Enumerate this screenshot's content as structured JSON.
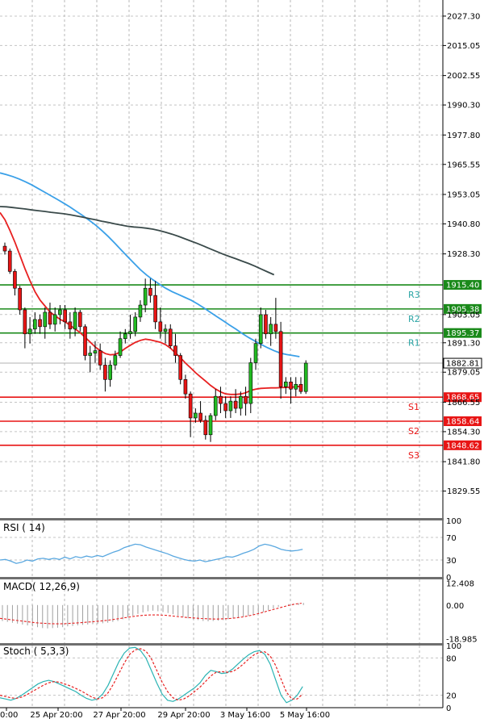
{
  "chart_data": [
    {
      "type": "candlestick",
      "title": "",
      "price_axis": {
        "ylim": [
          1819.0,
          2034.0
        ],
        "tick_labels": [
          "2027.30",
          "2015.05",
          "2002.55",
          "1990.30",
          "1977.80",
          "1965.55",
          "1953.05",
          "1940.80",
          "1928.30",
          "1915.40",
          "1905.38",
          "1903.05",
          "1895.37",
          "1891.30",
          "1882.81",
          "1879.05",
          "1868.65",
          "1866.55",
          "1858.64",
          "1854.30",
          "1848.62",
          "1841.80",
          "1829.55"
        ]
      },
      "x_axis": {
        "tick_labels": [
          "00:00",
          "25 Apr 20:00",
          "27 Apr 20:00",
          "29 Apr 20:00",
          "3 May 16:00",
          "5 May 16:00"
        ]
      },
      "grid": true,
      "candles": [
        {
          "o": 1931.5,
          "h": 1933.0,
          "l": 1928.0,
          "c": 1929.5
        },
        {
          "o": 1929.5,
          "h": 1930.5,
          "l": 1920.0,
          "c": 1921.0
        },
        {
          "o": 1921.0,
          "h": 1922.0,
          "l": 1911.0,
          "c": 1914.0
        },
        {
          "o": 1914.0,
          "h": 1915.0,
          "l": 1903.0,
          "c": 1905.0
        },
        {
          "o": 1905.0,
          "h": 1906.0,
          "l": 1889.0,
          "c": 1895.0
        },
        {
          "o": 1895.0,
          "h": 1902.0,
          "l": 1891.0,
          "c": 1897.0
        },
        {
          "o": 1897.0,
          "h": 1904.0,
          "l": 1895.0,
          "c": 1901.0
        },
        {
          "o": 1901.0,
          "h": 1903.0,
          "l": 1895.0,
          "c": 1898.0
        },
        {
          "o": 1898.0,
          "h": 1906.0,
          "l": 1893.0,
          "c": 1904.0
        },
        {
          "o": 1904.0,
          "h": 1908.0,
          "l": 1897.0,
          "c": 1899.0
        },
        {
          "o": 1899.0,
          "h": 1906.0,
          "l": 1896.0,
          "c": 1903.0
        },
        {
          "o": 1903.0,
          "h": 1907.0,
          "l": 1899.0,
          "c": 1905.0
        },
        {
          "o": 1905.0,
          "h": 1907.0,
          "l": 1897.0,
          "c": 1900.0
        },
        {
          "o": 1900.0,
          "h": 1904.0,
          "l": 1893.0,
          "c": 1897.0
        },
        {
          "o": 1897.0,
          "h": 1906.0,
          "l": 1894.0,
          "c": 1904.0
        },
        {
          "o": 1904.0,
          "h": 1905.0,
          "l": 1896.0,
          "c": 1898.0
        },
        {
          "o": 1898.0,
          "h": 1899.0,
          "l": 1884.0,
          "c": 1886.0
        },
        {
          "o": 1886.0,
          "h": 1890.0,
          "l": 1879.0,
          "c": 1887.0
        },
        {
          "o": 1887.0,
          "h": 1892.0,
          "l": 1883.0,
          "c": 1888.0
        },
        {
          "o": 1888.0,
          "h": 1891.0,
          "l": 1880.0,
          "c": 1882.0
        },
        {
          "o": 1882.0,
          "h": 1885.0,
          "l": 1871.0,
          "c": 1876.0
        },
        {
          "o": 1876.0,
          "h": 1884.0,
          "l": 1873.0,
          "c": 1882.0
        },
        {
          "o": 1882.0,
          "h": 1888.0,
          "l": 1880.0,
          "c": 1886.0
        },
        {
          "o": 1886.0,
          "h": 1896.0,
          "l": 1885.0,
          "c": 1893.0
        },
        {
          "o": 1893.0,
          "h": 1897.0,
          "l": 1891.0,
          "c": 1895.0
        },
        {
          "o": 1895.0,
          "h": 1903.0,
          "l": 1893.0,
          "c": 1896.0
        },
        {
          "o": 1896.0,
          "h": 1904.0,
          "l": 1894.0,
          "c": 1902.0
        },
        {
          "o": 1902.0,
          "h": 1909.0,
          "l": 1900.0,
          "c": 1907.0
        },
        {
          "o": 1907.0,
          "h": 1918.0,
          "l": 1904.0,
          "c": 1914.0
        },
        {
          "o": 1914.0,
          "h": 1918.0,
          "l": 1908.0,
          "c": 1911.0
        },
        {
          "o": 1911.0,
          "h": 1917.0,
          "l": 1897.0,
          "c": 1900.0
        },
        {
          "o": 1900.0,
          "h": 1906.0,
          "l": 1893.0,
          "c": 1896.0
        },
        {
          "o": 1896.0,
          "h": 1899.0,
          "l": 1891.0,
          "c": 1897.0
        },
        {
          "o": 1897.0,
          "h": 1899.0,
          "l": 1889.0,
          "c": 1890.0
        },
        {
          "o": 1890.0,
          "h": 1895.0,
          "l": 1883.0,
          "c": 1886.0
        },
        {
          "o": 1886.0,
          "h": 1887.0,
          "l": 1874.0,
          "c": 1876.0
        },
        {
          "o": 1876.0,
          "h": 1878.0,
          "l": 1868.0,
          "c": 1870.0
        },
        {
          "o": 1870.0,
          "h": 1871.0,
          "l": 1852.0,
          "c": 1860.0
        },
        {
          "o": 1860.0,
          "h": 1864.0,
          "l": 1858.0,
          "c": 1862.0
        },
        {
          "o": 1862.0,
          "h": 1867.0,
          "l": 1858.0,
          "c": 1859.0
        },
        {
          "o": 1859.0,
          "h": 1861.0,
          "l": 1851.0,
          "c": 1853.0
        },
        {
          "o": 1853.0,
          "h": 1862.0,
          "l": 1850.0,
          "c": 1861.0
        },
        {
          "o": 1861.0,
          "h": 1872.0,
          "l": 1859.0,
          "c": 1869.0
        },
        {
          "o": 1869.0,
          "h": 1873.0,
          "l": 1862.0,
          "c": 1866.0
        },
        {
          "o": 1866.0,
          "h": 1869.0,
          "l": 1860.0,
          "c": 1863.0
        },
        {
          "o": 1863.0,
          "h": 1869.0,
          "l": 1860.0,
          "c": 1867.0
        },
        {
          "o": 1867.0,
          "h": 1872.0,
          "l": 1862.0,
          "c": 1864.0
        },
        {
          "o": 1864.0,
          "h": 1871.0,
          "l": 1861.0,
          "c": 1869.0
        },
        {
          "o": 1869.0,
          "h": 1873.0,
          "l": 1861.0,
          "c": 1866.0
        },
        {
          "o": 1866.0,
          "h": 1885.0,
          "l": 1862.0,
          "c": 1883.0
        },
        {
          "o": 1883.0,
          "h": 1893.0,
          "l": 1880.0,
          "c": 1891.0
        },
        {
          "o": 1891.0,
          "h": 1906.0,
          "l": 1889.0,
          "c": 1903.0
        },
        {
          "o": 1903.0,
          "h": 1905.0,
          "l": 1893.0,
          "c": 1895.0
        },
        {
          "o": 1895.0,
          "h": 1902.0,
          "l": 1890.0,
          "c": 1899.0
        },
        {
          "o": 1899.0,
          "h": 1910.0,
          "l": 1893.0,
          "c": 1896.0
        },
        {
          "o": 1896.0,
          "h": 1900.0,
          "l": 1868.0,
          "c": 1873.0
        },
        {
          "o": 1873.0,
          "h": 1877.0,
          "l": 1870.0,
          "c": 1875.0
        },
        {
          "o": 1875.0,
          "h": 1877.0,
          "l": 1866.0,
          "c": 1872.0
        },
        {
          "o": 1872.0,
          "h": 1877.0,
          "l": 1869.0,
          "c": 1874.0
        },
        {
          "o": 1874.0,
          "h": 1877.0,
          "l": 1870.0,
          "c": 1871.0
        },
        {
          "o": 1871.0,
          "h": 1884.0,
          "l": 1870.0,
          "c": 1882.81
        }
      ],
      "moving_averages": [
        {
          "color": "#3aa0e8",
          "values": [
            1962.0,
            1961.3,
            1960.5,
            1959.5,
            1958.3,
            1957.0,
            1955.5,
            1954.0,
            1952.5,
            1951.0,
            1949.4,
            1947.8,
            1946.0,
            1944.2,
            1942.3,
            1940.3,
            1938.0,
            1935.5,
            1932.8,
            1930.0,
            1927.2,
            1924.5,
            1921.8,
            1919.5,
            1917.5,
            1915.7,
            1914.0,
            1912.6,
            1911.4,
            1910.2,
            1909.0,
            1907.5,
            1905.8,
            1904.0,
            1902.2,
            1900.5,
            1898.7,
            1897.0,
            1895.2,
            1893.5,
            1892.0,
            1890.6,
            1889.2,
            1888.0,
            1887.0,
            1886.4,
            1886.0,
            1885.5
          ]
        },
        {
          "color": "#e82020",
          "values": [
            1945.5,
            1942.5,
            1938.0,
            1933.0,
            1927.5,
            1922.0,
            1917.0,
            1912.5,
            1909.0,
            1906.5,
            1904.0,
            1902.5,
            1901.0,
            1900.0,
            1898.5,
            1897.0,
            1895.5,
            1893.5,
            1891.5,
            1889.5,
            1888.0,
            1886.8,
            1886.3,
            1886.5,
            1887.5,
            1889.0,
            1890.3,
            1891.5,
            1892.3,
            1892.8,
            1892.5,
            1892.0,
            1891.5,
            1890.5,
            1889.0,
            1887.0,
            1885.0,
            1882.8,
            1880.8,
            1878.8,
            1877.0,
            1875.3,
            1873.5,
            1872.0,
            1870.8,
            1870.0,
            1869.8,
            1869.8,
            1870.0,
            1870.5,
            1871.5,
            1872.0,
            1872.3,
            1872.4,
            1872.5,
            1872.5,
            1872.6,
            1872.7,
            1872.8,
            1873.0,
            1873.2
          ]
        },
        {
          "color": "#3a4a4a",
          "values": [
            1948.0,
            1947.9,
            1947.6,
            1947.3,
            1947.0,
            1946.6,
            1946.3,
            1946.0,
            1945.6,
            1945.3,
            1945.0,
            1944.6,
            1944.1,
            1943.6,
            1943.0,
            1942.5,
            1941.9,
            1941.4,
            1940.8,
            1940.3,
            1939.8,
            1939.5,
            1939.3,
            1939.0,
            1938.6,
            1938.0,
            1937.3,
            1936.5,
            1935.6,
            1934.6,
            1933.6,
            1932.6,
            1931.5,
            1930.4,
            1929.3,
            1928.2,
            1927.2,
            1926.3,
            1925.3,
            1924.3,
            1923.2,
            1922.0,
            1920.8,
            1919.6
          ]
        }
      ],
      "levels": [
        {
          "label": "R3",
          "value": 1915.4,
          "value_label": "1915.40",
          "color": "#1a8a1a",
          "label_color": "#2aa5a5"
        },
        {
          "label": "R2",
          "value": 1905.38,
          "value_label": "1905.38",
          "color": "#1a8a1a",
          "label_color": "#2aa5a5"
        },
        {
          "label": "R1",
          "value": 1895.37,
          "value_label": "1895.37",
          "color": "#1a8a1a",
          "label_color": "#2aa5a5"
        },
        {
          "label": "S1",
          "value": 1868.65,
          "value_label": "1868.65",
          "color": "#e81515",
          "label_color": "#e81515"
        },
        {
          "label": "S2",
          "value": 1858.64,
          "value_label": "1858.64",
          "color": "#e81515",
          "label_color": "#e81515"
        },
        {
          "label": "S3",
          "value": 1848.62,
          "value_label": "1848.62",
          "color": "#e81515",
          "label_color": "#e81515"
        }
      ],
      "current_price": {
        "value": 1882.81,
        "label": "1882.81"
      }
    },
    {
      "type": "line",
      "title": "RSI ( 14)",
      "ylim": [
        0,
        100
      ],
      "tick_labels": [
        "100",
        "70",
        "30",
        "0"
      ],
      "reference_levels": [
        70,
        30
      ],
      "series": [
        {
          "color": "#5aa8e0",
          "values": [
            30,
            31,
            28,
            24,
            26,
            30,
            28,
            32,
            33,
            31,
            33,
            31,
            35,
            32,
            36,
            34,
            37,
            35,
            38,
            36,
            40,
            44,
            47,
            52,
            55,
            58,
            57,
            53,
            50,
            47,
            44,
            41,
            37,
            34,
            31,
            29,
            28,
            30,
            27,
            29,
            31,
            33,
            36,
            35,
            38,
            42,
            45,
            49,
            55,
            58,
            56,
            53,
            49,
            47,
            46,
            47,
            49
          ]
        }
      ]
    },
    {
      "type": "bar",
      "title": "MACD( 12,26,9)",
      "ylim": [
        -21.5,
        14.5
      ],
      "tick_labels": [
        "12.408",
        "0.00",
        "-18.985"
      ],
      "histogram": [
        -9.0,
        -9.5,
        -10.0,
        -10.5,
        -11.0,
        -11.5,
        -12.0,
        -12.5,
        -13.0,
        -13.2,
        -13.0,
        -12.8,
        -12.5,
        -12.0,
        -11.8,
        -11.5,
        -11.2,
        -11.0,
        -10.8,
        -10.5,
        -10.3,
        -10.0,
        -9.5,
        -9.0,
        -8.0,
        -7.0,
        -6.0,
        -5.0,
        -4.2,
        -3.5,
        -3.2,
        -3.5,
        -4.0,
        -4.5,
        -5.2,
        -6.0,
        -6.8,
        -7.5,
        -8.0,
        -8.5,
        -9.0,
        -9.2,
        -9.0,
        -8.8,
        -8.5,
        -8.0,
        -7.5,
        -7.0,
        -6.5,
        -6.0,
        -5.5,
        -5.0,
        -4.0,
        -3.0,
        -2.0,
        -1.0,
        0.0,
        0.5,
        0.8,
        1.0,
        1.2
      ],
      "signal": {
        "color": "#e82020",
        "style": "dashed",
        "values": [
          -7.5,
          -8.0,
          -8.5,
          -9.0,
          -9.5,
          -10.0,
          -10.3,
          -10.5,
          -10.6,
          -10.5,
          -10.3,
          -10.0,
          -9.7,
          -9.4,
          -9.0,
          -8.6,
          -8.0,
          -7.4,
          -6.8,
          -6.2,
          -5.8,
          -5.6,
          -5.6,
          -5.8,
          -6.2,
          -6.6,
          -7.0,
          -7.3,
          -7.6,
          -7.8,
          -7.9,
          -7.8,
          -7.6,
          -7.2,
          -6.6,
          -5.8,
          -4.8,
          -3.7,
          -2.6,
          -1.5,
          -0.4,
          0.5,
          1.0
        ]
      }
    },
    {
      "type": "line",
      "title": "Stoch ( 5,3,3)",
      "ylim": [
        0,
        100
      ],
      "tick_labels": [
        "100",
        "80",
        "20",
        "0"
      ],
      "reference_levels": [
        80,
        20
      ],
      "series": [
        {
          "color": "#2ab3b3",
          "style": "solid",
          "values": [
            16,
            14,
            12,
            15,
            20,
            26,
            32,
            38,
            42,
            44,
            42,
            38,
            34,
            30,
            26,
            20,
            15,
            12,
            14,
            22,
            36,
            55,
            74,
            88,
            96,
            97,
            92,
            80,
            60,
            40,
            22,
            12,
            10,
            14,
            20,
            26,
            32,
            40,
            52,
            60,
            58,
            55,
            56,
            62,
            70,
            78,
            85,
            90,
            92,
            86,
            70,
            45,
            20,
            8,
            12,
            20,
            34
          ]
        },
        {
          "color": "#e82020",
          "style": "dashed",
          "values": [
            20,
            18,
            16,
            15,
            17,
            21,
            26,
            31,
            36,
            40,
            42,
            41,
            38,
            35,
            31,
            27,
            22,
            17,
            14,
            16,
            24,
            38,
            55,
            72,
            86,
            93,
            95,
            91,
            79,
            60,
            41,
            26,
            16,
            12,
            14,
            19,
            26,
            33,
            42,
            51,
            57,
            58,
            57,
            58,
            63,
            70,
            78,
            85,
            89,
            90,
            83,
            68,
            46,
            25,
            14,
            14,
            22
          ]
        }
      ]
    }
  ]
}
